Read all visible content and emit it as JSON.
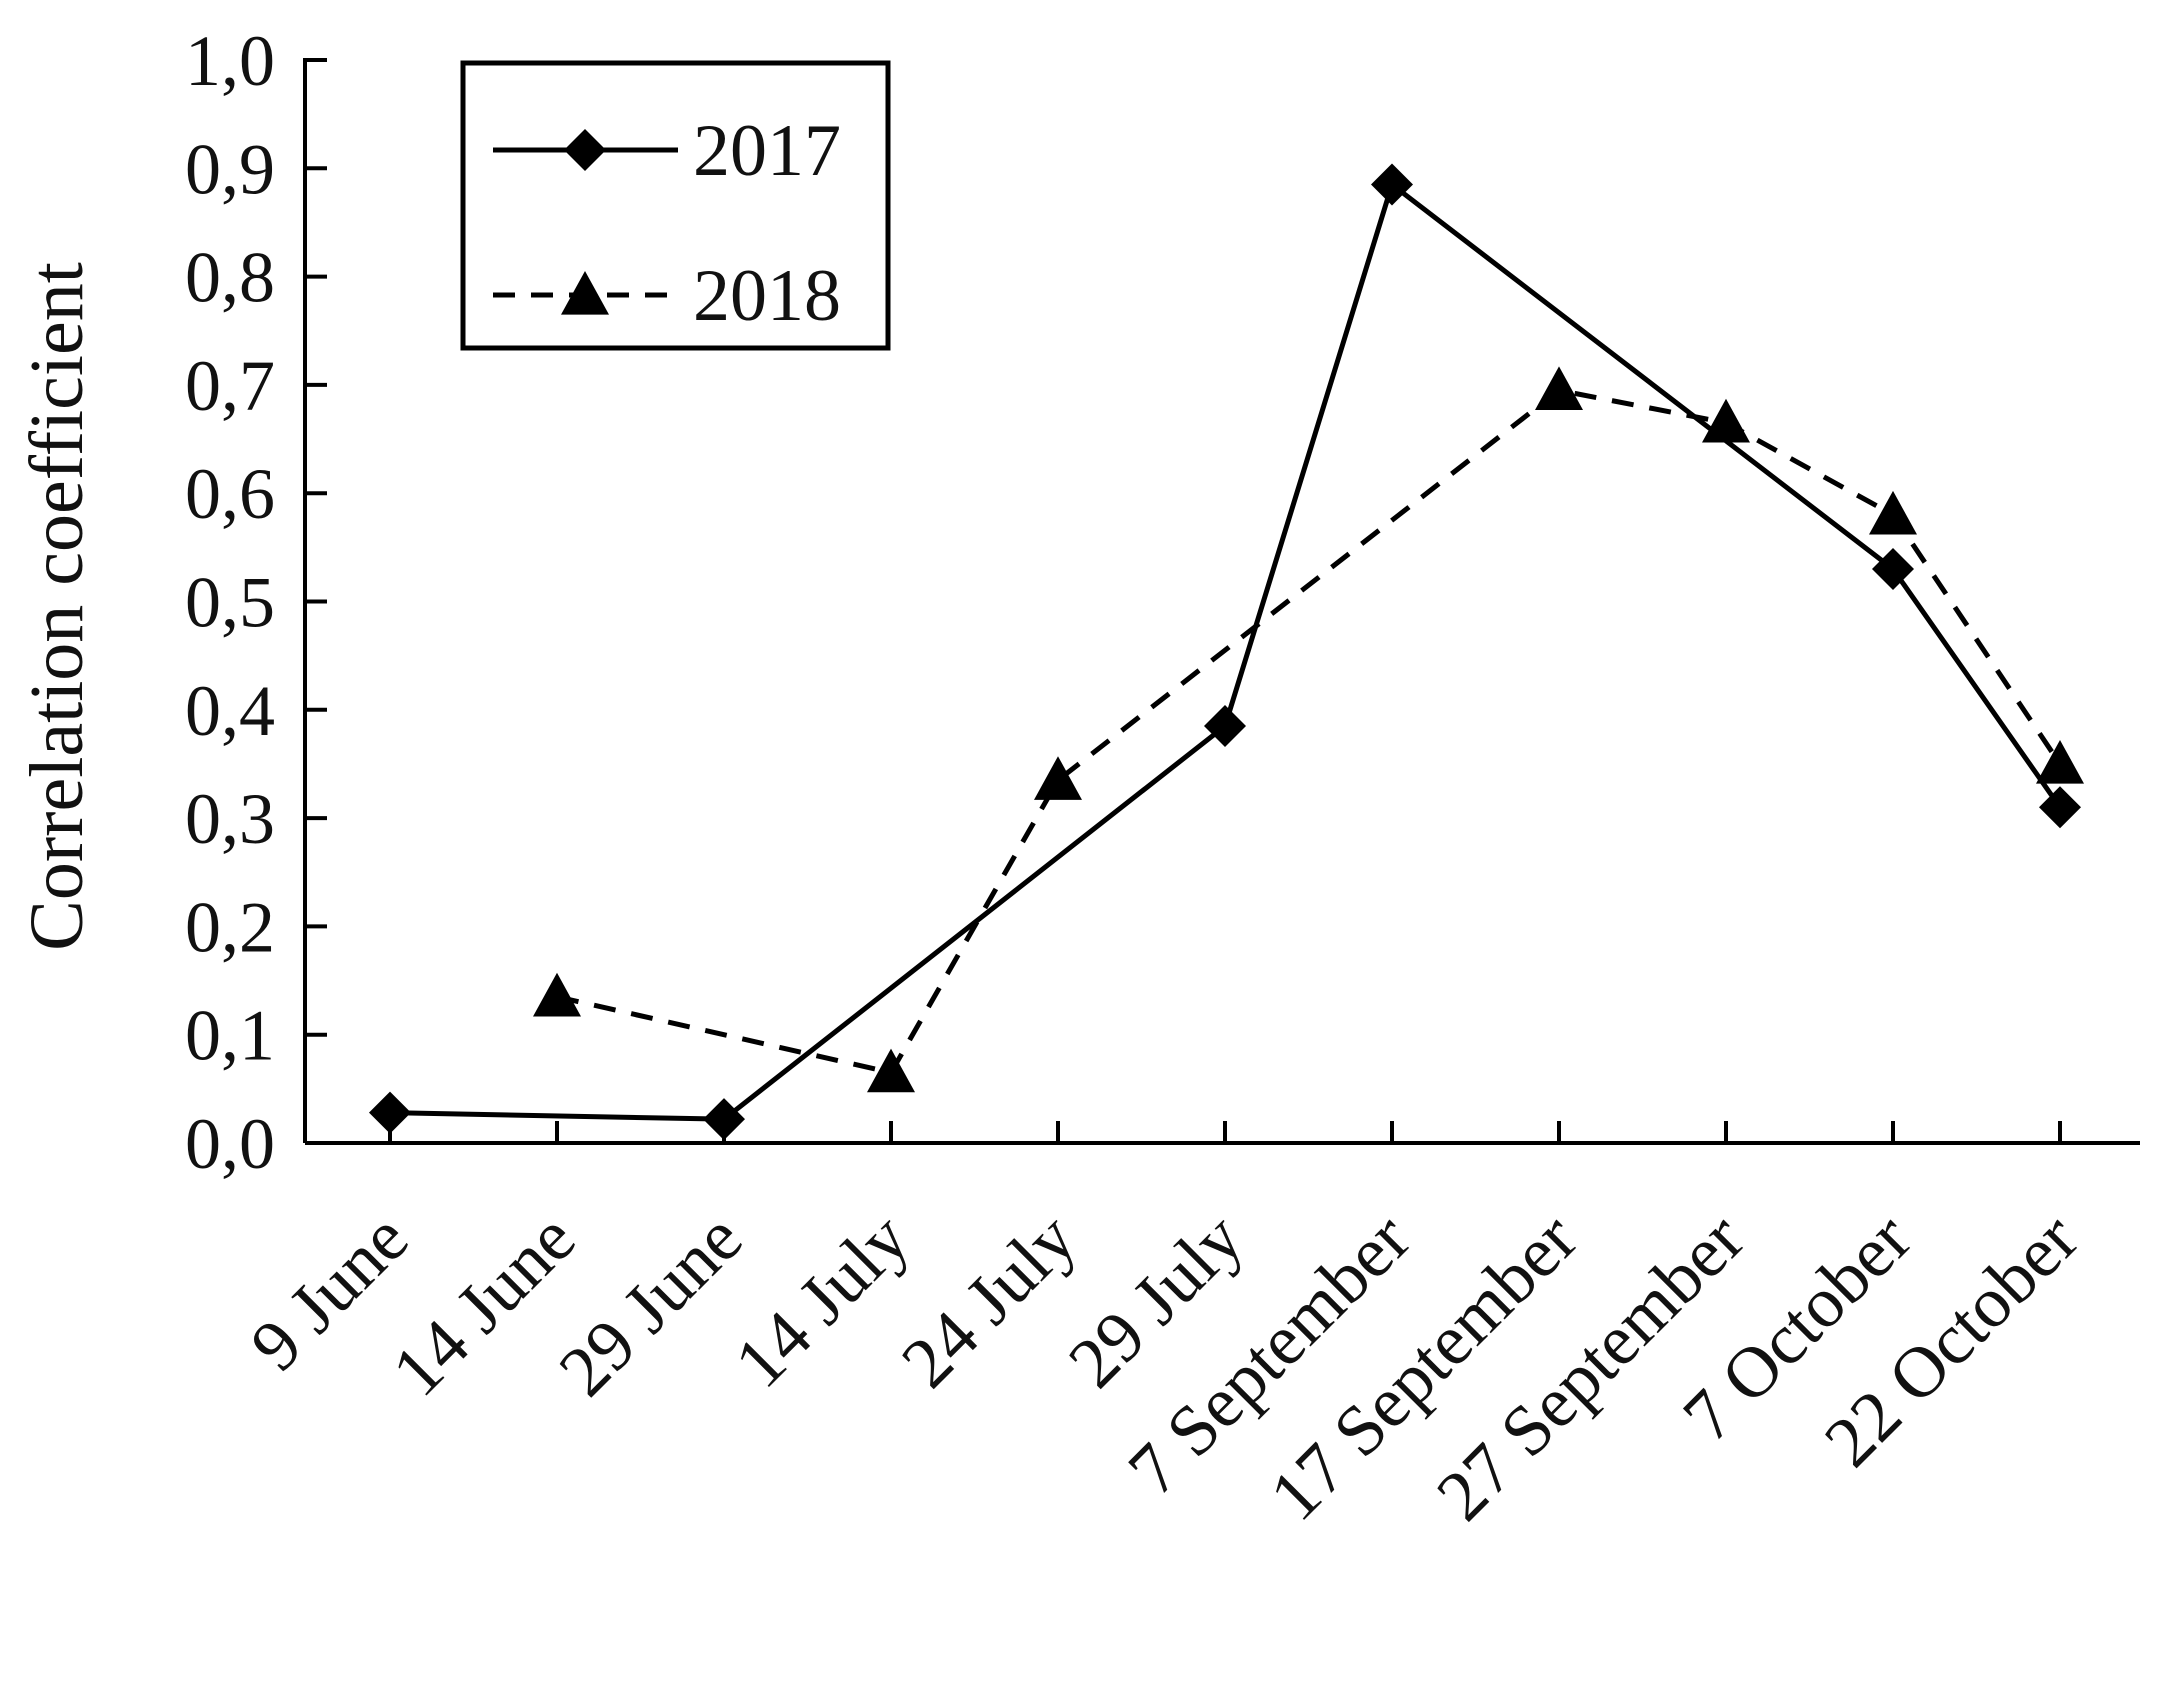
{
  "chart_data": {
    "type": "line",
    "title": "",
    "xlabel": "",
    "ylabel": "Correlation coefficient",
    "categories": [
      "9 June",
      "14 June",
      "29 June",
      "14 July",
      "24 July",
      "29 July",
      "7 September",
      "17 September",
      "27 September",
      "7 October",
      "22 October"
    ],
    "ylim": [
      0.0,
      1.0
    ],
    "yticks": [
      "0,0",
      "0,1",
      "0,2",
      "0,3",
      "0,4",
      "0,5",
      "0,6",
      "0,7",
      "0,8",
      "0,9",
      "1,0"
    ],
    "grid": false,
    "legend": "top-left",
    "series": [
      {
        "name": "2017",
        "line_style": "solid",
        "marker": "diamond",
        "color": "#000000",
        "values": [
          0.028,
          null,
          0.022,
          null,
          null,
          0.385,
          0.885,
          null,
          null,
          0.53,
          0.31
        ]
      },
      {
        "name": "2018",
        "line_style": "dashed",
        "marker": "triangle",
        "color": "#000000",
        "values": [
          null,
          0.135,
          null,
          0.065,
          0.335,
          null,
          null,
          0.695,
          0.665,
          0.58,
          0.35
        ]
      }
    ]
  }
}
